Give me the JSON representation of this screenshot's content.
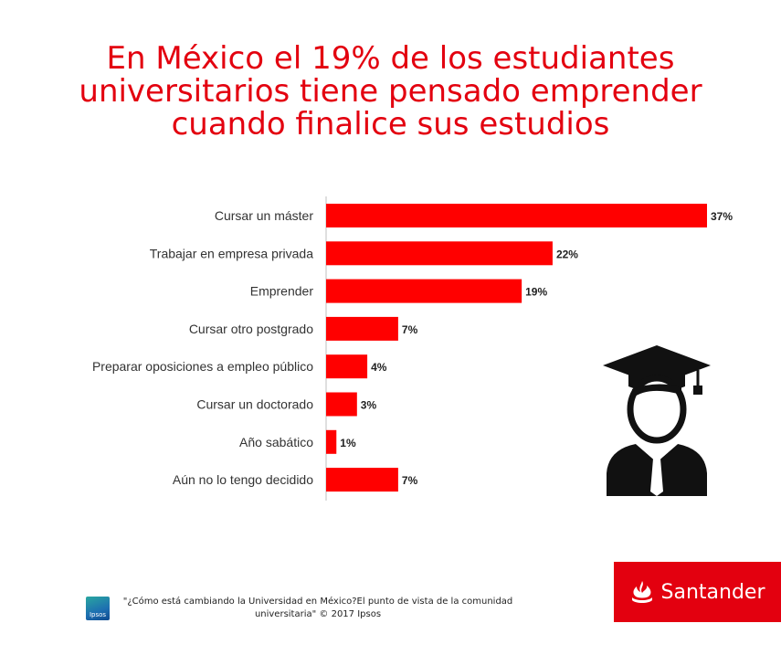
{
  "title_lines": [
    "En México el 19% de los estudiantes",
    "universitarios tiene pensado emprender",
    "cuando finalice sus estudios"
  ],
  "chart_data": {
    "type": "bar",
    "orientation": "horizontal",
    "categories": [
      "Cursar un máster",
      "Trabajar en empresa privada",
      "Emprender",
      "Cursar otro postgrado",
      "Preparar oposiciones a empleo público",
      "Cursar un doctorado",
      "Año sabático",
      "Aún no lo tengo decidido"
    ],
    "values": [
      37,
      22,
      19,
      7,
      4,
      3,
      1,
      7
    ],
    "value_labels": [
      "37%",
      "22%",
      "19%",
      "7%",
      "4%",
      "3%",
      "1%",
      "7%"
    ],
    "xlim": [
      0,
      37
    ],
    "bar_color": "#ff0000",
    "grid": false,
    "legend": "none"
  },
  "icons": {
    "graduate": "graduate-student-icon",
    "brand_flame": "santander-flame-icon"
  },
  "footer": {
    "ipsos_label": "Ipsos",
    "source_line1": "\"¿Cómo está cambiando la Universidad en México?El punto de vista de la comunidad",
    "source_line2": "universitaria\" © 2017 Ipsos"
  },
  "brand": {
    "name": "Santander",
    "color": "#e3000f"
  }
}
